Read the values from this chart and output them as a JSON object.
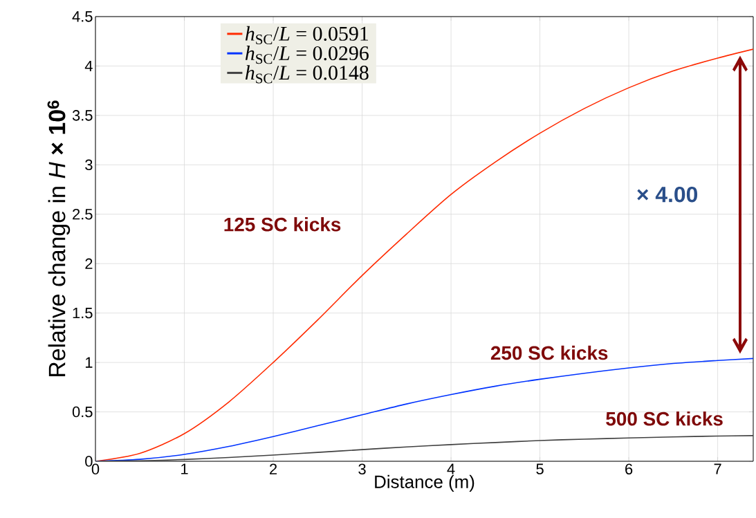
{
  "chart_data": {
    "type": "line",
    "xlabel": "Distance (m)",
    "ylabel": "Relative change in *H* **× 10$^{6}$**",
    "x": [
      0,
      0.5,
      1,
      1.5,
      2,
      2.5,
      3,
      3.5,
      4,
      4.5,
      5,
      5.5,
      6,
      6.5,
      7,
      7.4
    ],
    "series": [
      {
        "name": "*h*$_{SC}$/*L* = 0.0591",
        "color": "#ff2a00",
        "values": [
          0,
          0.08,
          0.28,
          0.6,
          1.0,
          1.43,
          1.88,
          2.3,
          2.7,
          3.03,
          3.32,
          3.57,
          3.78,
          3.95,
          4.08,
          4.17
        ]
      },
      {
        "name": "*h*$_{SC}$/*L* = 0.0296",
        "color": "#0033ff",
        "values": [
          0,
          0.02,
          0.07,
          0.15,
          0.25,
          0.36,
          0.47,
          0.58,
          0.675,
          0.76,
          0.83,
          0.89,
          0.945,
          0.99,
          1.02,
          1.04
        ]
      },
      {
        "name": "*h*$_{SC}$/*L* = 0.0148",
        "color": "#404040",
        "values": [
          0,
          0.005,
          0.018,
          0.038,
          0.063,
          0.09,
          0.118,
          0.145,
          0.169,
          0.19,
          0.21,
          0.224,
          0.236,
          0.247,
          0.255,
          0.26
        ]
      }
    ],
    "xlim": [
      0,
      7.4
    ],
    "ylim": [
      0,
      4.5
    ],
    "xticks": [
      0,
      1,
      2,
      3,
      4,
      5,
      6,
      7
    ],
    "yticks": [
      0,
      0.5,
      1,
      1.5,
      2,
      2.5,
      3,
      3.5,
      4,
      4.5
    ],
    "grid": true,
    "legend": "top left",
    "marker": "none",
    "line_style": "solid",
    "annotations": [
      "125 SC kicks",
      "250 SC kicks",
      "500 SC kicks",
      "× 4.00"
    ]
  }
}
